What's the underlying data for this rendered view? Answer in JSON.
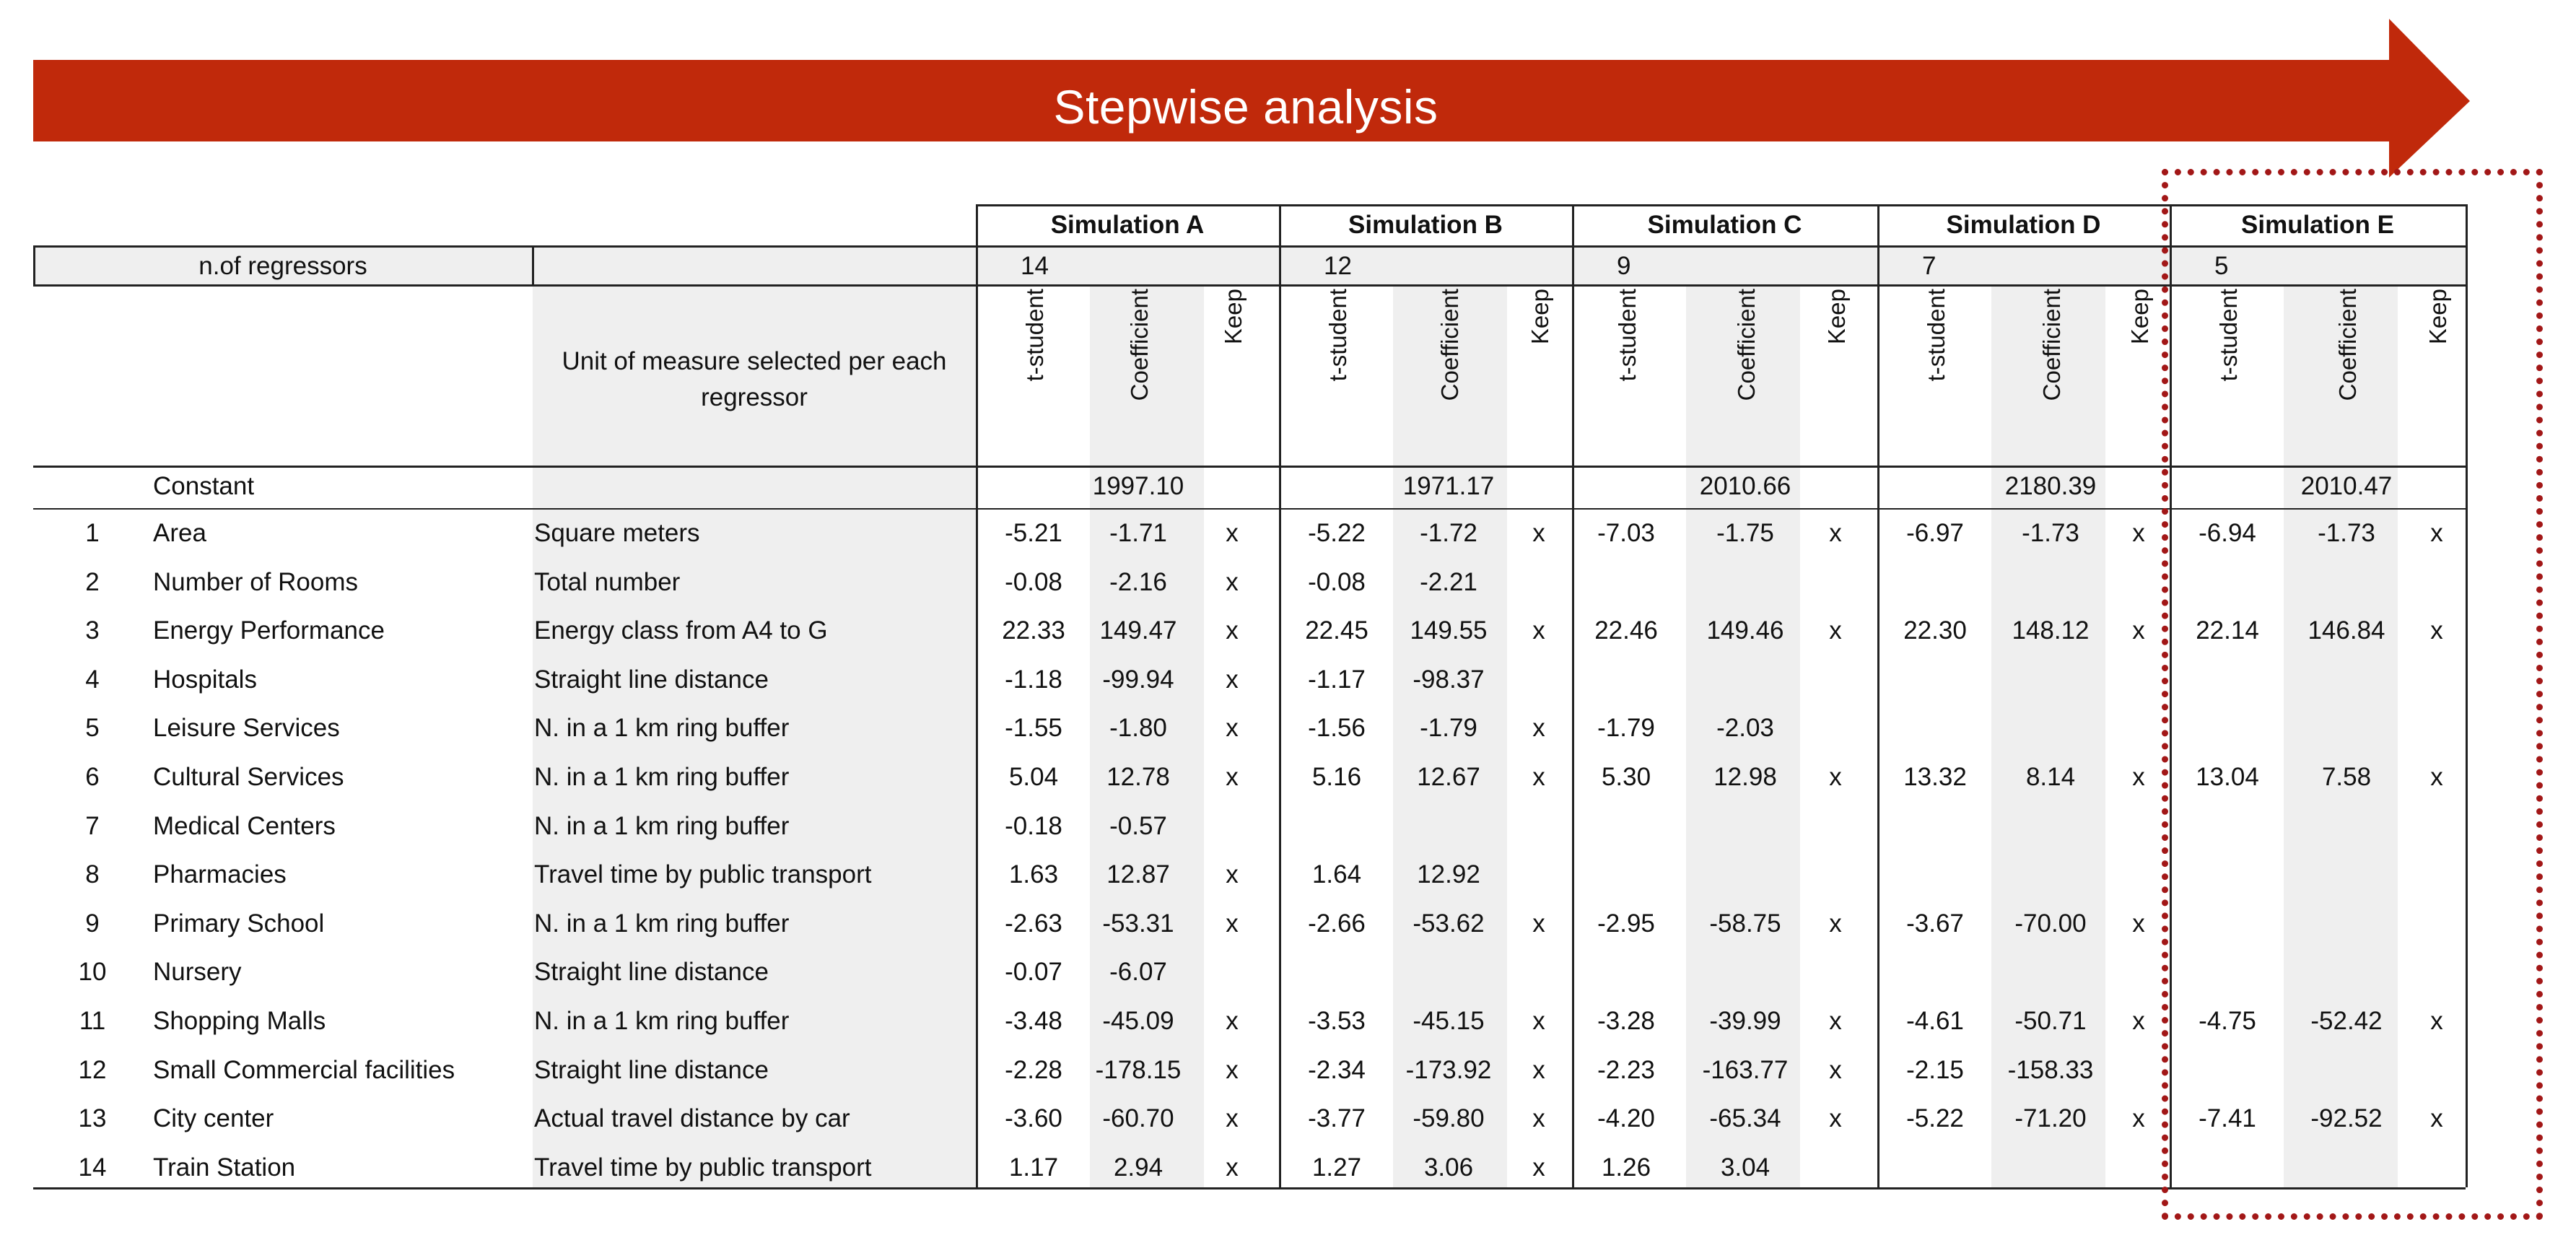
{
  "banner": {
    "title": "Stepwise analysis",
    "color": "#c0290b"
  },
  "header": {
    "n_regressors_label": "n.of regressors",
    "unit_label": "Unit of measure selected per each regressor"
  },
  "simulations": [
    {
      "name": "Simulation A",
      "n": "14",
      "constant": "1997.10"
    },
    {
      "name": "Simulation B",
      "n": "12",
      "constant": "1971.17"
    },
    {
      "name": "Simulation C",
      "n": "9",
      "constant": "2010.66"
    },
    {
      "name": "Simulation D",
      "n": "7",
      "constant": "2180.39"
    },
    {
      "name": "Simulation E",
      "n": "5",
      "constant": "2010.47"
    }
  ],
  "col_labels": {
    "t": "t-student",
    "coef": "Coefficient",
    "keep": "Keep"
  },
  "constant_label": "Constant",
  "rows": [
    {
      "n": "1",
      "name": "Area",
      "unit": "Square meters",
      "sims": [
        [
          "-5.21",
          "-1.71",
          "x"
        ],
        [
          "-5.22",
          "-1.72",
          "x"
        ],
        [
          "-7.03",
          "-1.75",
          "x"
        ],
        [
          "-6.97",
          "-1.73",
          "x"
        ],
        [
          "-6.94",
          "-1.73",
          "x"
        ]
      ]
    },
    {
      "n": "2",
      "name": "Number of Rooms",
      "unit": "Total number",
      "sims": [
        [
          "-0.08",
          "-2.16",
          "x"
        ],
        [
          "-0.08",
          "-2.21",
          ""
        ],
        [
          "",
          "",
          ""
        ],
        [
          "",
          "",
          ""
        ],
        [
          "",
          "",
          ""
        ]
      ]
    },
    {
      "n": "3",
      "name": "Energy Performance",
      "unit": "Energy class from A4 to G",
      "sims": [
        [
          "22.33",
          "149.47",
          "x"
        ],
        [
          "22.45",
          "149.55",
          "x"
        ],
        [
          "22.46",
          "149.46",
          "x"
        ],
        [
          "22.30",
          "148.12",
          "x"
        ],
        [
          "22.14",
          "146.84",
          "x"
        ]
      ]
    },
    {
      "n": "4",
      "name": "Hospitals",
      "unit": "Straight line distance",
      "sims": [
        [
          "-1.18",
          "-99.94",
          "x"
        ],
        [
          "-1.17",
          "-98.37",
          ""
        ],
        [
          "",
          "",
          ""
        ],
        [
          "",
          "",
          ""
        ],
        [
          "",
          "",
          ""
        ]
      ]
    },
    {
      "n": "5",
      "name": "Leisure Services",
      "unit": "N. in a 1 km ring buffer",
      "sims": [
        [
          "-1.55",
          "-1.80",
          "x"
        ],
        [
          "-1.56",
          "-1.79",
          "x"
        ],
        [
          "-1.79",
          "-2.03",
          ""
        ],
        [
          "",
          "",
          ""
        ],
        [
          "",
          "",
          ""
        ]
      ]
    },
    {
      "n": "6",
      "name": "Cultural Services",
      "unit": "N. in a 1 km ring buffer",
      "sims": [
        [
          "5.04",
          "12.78",
          "x"
        ],
        [
          "5.16",
          "12.67",
          "x"
        ],
        [
          "5.30",
          "12.98",
          "x"
        ],
        [
          "13.32",
          "8.14",
          "x"
        ],
        [
          "13.04",
          "7.58",
          "x"
        ]
      ]
    },
    {
      "n": "7",
      "name": "Medical Centers",
      "unit": "N. in a 1 km ring buffer",
      "sims": [
        [
          "-0.18",
          "-0.57",
          ""
        ],
        [
          "",
          "",
          ""
        ],
        [
          "",
          "",
          ""
        ],
        [
          "",
          "",
          ""
        ],
        [
          "",
          "",
          ""
        ]
      ]
    },
    {
      "n": "8",
      "name": "Pharmacies",
      "unit": "Travel time by public transport",
      "sims": [
        [
          "1.63",
          "12.87",
          "x"
        ],
        [
          "1.64",
          "12.92",
          ""
        ],
        [
          "",
          "",
          ""
        ],
        [
          "",
          "",
          ""
        ],
        [
          "",
          "",
          ""
        ]
      ]
    },
    {
      "n": "9",
      "name": "Primary School",
      "unit": "N. in a 1 km ring buffer",
      "sims": [
        [
          "-2.63",
          "-53.31",
          "x"
        ],
        [
          "-2.66",
          "-53.62",
          "x"
        ],
        [
          "-2.95",
          "-58.75",
          "x"
        ],
        [
          "-3.67",
          "-70.00",
          "x"
        ],
        [
          "",
          "",
          ""
        ]
      ]
    },
    {
      "n": "10",
      "name": "Nursery",
      "unit": "Straight line distance",
      "sims": [
        [
          "-0.07",
          "-6.07",
          ""
        ],
        [
          "",
          "",
          ""
        ],
        [
          "",
          "",
          ""
        ],
        [
          "",
          "",
          ""
        ],
        [
          "",
          "",
          ""
        ]
      ]
    },
    {
      "n": "11",
      "name": "Shopping Malls",
      "unit": "N. in a 1 km ring buffer",
      "sims": [
        [
          "-3.48",
          "-45.09",
          "x"
        ],
        [
          "-3.53",
          "-45.15",
          "x"
        ],
        [
          "-3.28",
          "-39.99",
          "x"
        ],
        [
          "-4.61",
          "-50.71",
          "x"
        ],
        [
          "-4.75",
          "-52.42",
          "x"
        ]
      ]
    },
    {
      "n": "12",
      "name": "Small Commercial facilities",
      "unit": "Straight line distance",
      "sims": [
        [
          "-2.28",
          "-178.15",
          "x"
        ],
        [
          "-2.34",
          "-173.92",
          "x"
        ],
        [
          "-2.23",
          "-163.77",
          "x"
        ],
        [
          "-2.15",
          "-158.33",
          ""
        ],
        [
          "",
          "",
          ""
        ]
      ]
    },
    {
      "n": "13",
      "name": "City center",
      "unit": "Actual travel distance by car",
      "sims": [
        [
          "-3.60",
          "-60.70",
          "x"
        ],
        [
          "-3.77",
          "-59.80",
          "x"
        ],
        [
          "-4.20",
          "-65.34",
          "x"
        ],
        [
          "-5.22",
          "-71.20",
          "x"
        ],
        [
          "-7.41",
          "-92.52",
          "x"
        ]
      ]
    },
    {
      "n": "14",
      "name": "Train Station",
      "unit": "Travel time by public transport",
      "sims": [
        [
          "1.17",
          "2.94",
          "x"
        ],
        [
          "1.27",
          "3.06",
          "x"
        ],
        [
          "1.26",
          "3.04",
          ""
        ],
        [
          "",
          "",
          ""
        ],
        [
          "",
          "",
          ""
        ]
      ]
    }
  ]
}
